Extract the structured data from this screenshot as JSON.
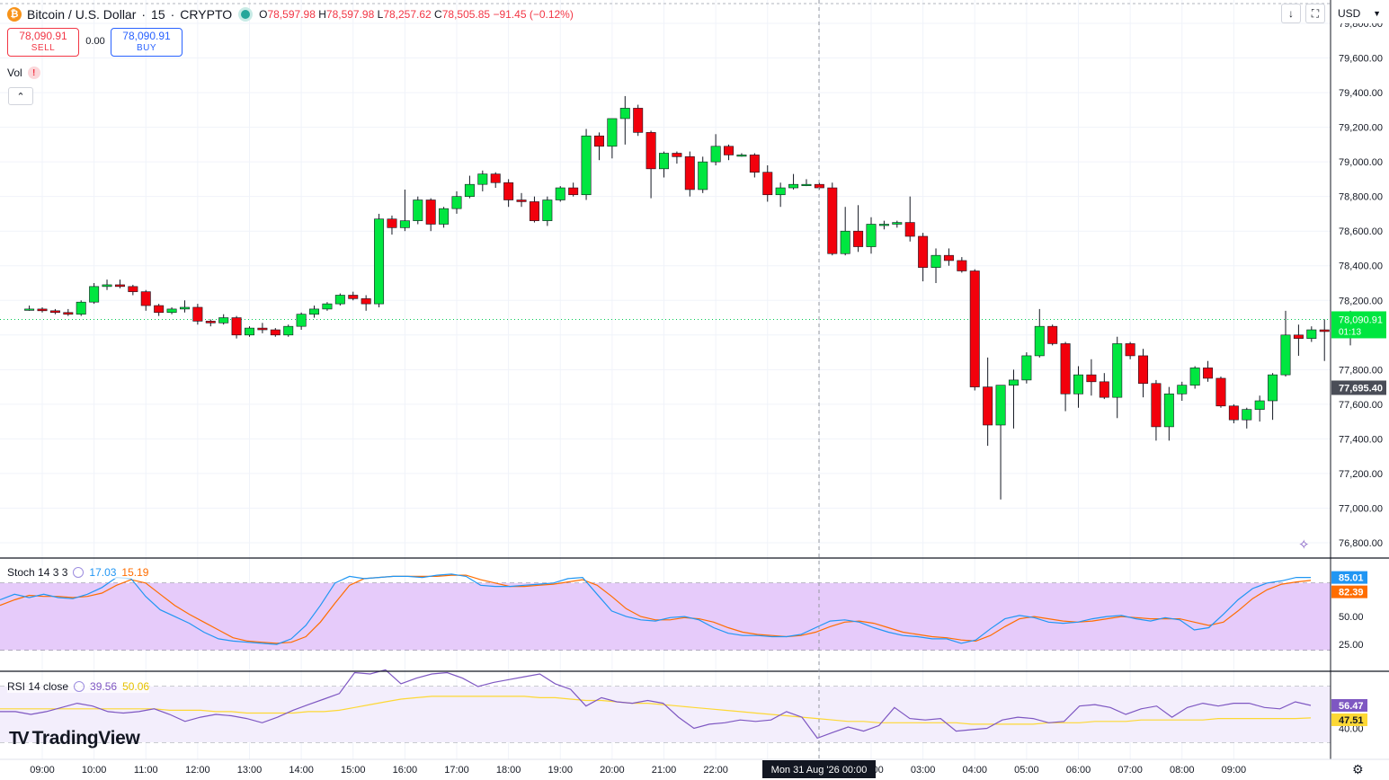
{
  "header": {
    "symbol": "Bitcoin / U.S. Dollar",
    "interval": "15",
    "exchange": "CRYPTO",
    "open_label": "O",
    "open": "78,597.98",
    "high_label": "H",
    "high": "78,597.98",
    "low_label": "L",
    "low": "78,257.62",
    "close_label": "C",
    "close": "78,505.85",
    "change": "−91.45 (−0.12%)"
  },
  "trade": {
    "sell_price": "78,090.91",
    "sell_label": "SELL",
    "spread": "0.00",
    "buy_price": "78,090.91",
    "buy_label": "BUY"
  },
  "volume_label": "Vol",
  "currency": "USD",
  "price_axis": {
    "ticks": [
      "79,800.00",
      "79,600.00",
      "79,400.00",
      "79,200.00",
      "79,000.00",
      "78,800.00",
      "78,600.00",
      "78,400.00",
      "78,200.00",
      "77,800.00",
      "77,600.00",
      "77,400.00",
      "77,200.00",
      "77,000.00",
      "76,800.00"
    ],
    "last_price": "78,090.91",
    "countdown": "01:13",
    "crosshair_price": "77,695.40"
  },
  "time_axis": {
    "ticks": [
      "09:00",
      "10:00",
      "11:00",
      "12:00",
      "13:00",
      "14:00",
      "15:00",
      "16:00",
      "17:00",
      "18:00",
      "19:00",
      "20:00",
      "21:00",
      "22:00",
      "23",
      "00",
      "02:00",
      "03:00",
      "04:00",
      "05:00",
      "06:00",
      "07:00",
      "08:00",
      "09:00"
    ],
    "crosshair_label": "Mon 31 Aug '26   00:00"
  },
  "stoch": {
    "label": "Stoch 14 3 3",
    "k": "17.03",
    "d": "15.19",
    "axis_k": "85.01",
    "axis_d": "82.39",
    "ticks": [
      "50.00",
      "25.00"
    ],
    "colors": {
      "k": "#2196f3",
      "d": "#ff6d00",
      "band": "#e6cbfa"
    },
    "k_values": [
      65,
      70,
      67,
      70,
      67,
      66,
      70,
      76,
      85,
      84,
      68,
      56,
      50,
      44,
      36,
      30,
      28,
      27,
      26,
      25,
      30,
      42,
      60,
      80,
      86,
      84,
      85,
      86,
      86,
      85,
      87,
      88,
      86,
      78,
      77,
      77,
      78,
      79,
      80,
      84,
      85,
      70,
      55,
      50,
      47,
      46,
      49,
      50,
      47,
      40,
      35,
      33,
      33,
      32,
      32,
      34,
      40,
      46,
      47,
      45,
      40,
      36,
      33,
      32,
      30,
      30,
      26,
      29,
      39,
      48,
      51,
      49,
      45,
      44,
      45,
      48,
      50,
      51,
      48,
      46,
      49,
      47,
      38,
      40,
      52,
      65,
      75,
      80,
      82,
      85,
      85.01
    ],
    "d_values": [
      60,
      65,
      69,
      68,
      68,
      67,
      68,
      71,
      78,
      83,
      80,
      70,
      60,
      52,
      45,
      38,
      31,
      28,
      27,
      26,
      27,
      32,
      45,
      62,
      78,
      84,
      85,
      86,
      86,
      86,
      86,
      87,
      87,
      83,
      80,
      77,
      77,
      78,
      79,
      81,
      83,
      78,
      68,
      57,
      50,
      47,
      47,
      49,
      48,
      45,
      40,
      36,
      34,
      33,
      32,
      33,
      36,
      41,
      45,
      46,
      44,
      40,
      36,
      34,
      32,
      31,
      29,
      28,
      33,
      41,
      48,
      50,
      48,
      46,
      45,
      46,
      48,
      50,
      49,
      48,
      48,
      48,
      45,
      42,
      45,
      55,
      66,
      74,
      79,
      81,
      82.39
    ]
  },
  "rsi": {
    "label": "RSI 14 close",
    "value": "39.56",
    "ma": "50.06",
    "axis_value": "56.47",
    "axis_ma": "47.51",
    "ticks": [
      "40.00"
    ],
    "colors": {
      "rsi": "#7e57c2",
      "ma": "#fdd835",
      "band": "#f3eefc"
    },
    "rsi_values": [
      52,
      52,
      50,
      52,
      55,
      58,
      56,
      52,
      51,
      52,
      54,
      50,
      45,
      48,
      50,
      49,
      47,
      44,
      48,
      53,
      57,
      61,
      65,
      80,
      79,
      82,
      72,
      76,
      79,
      80,
      76,
      70,
      73,
      75,
      77,
      79,
      72,
      68,
      56,
      62,
      59,
      58,
      60,
      58,
      48,
      40,
      43,
      44,
      46,
      45,
      46,
      52,
      48,
      33,
      37,
      41,
      38,
      42,
      55,
      47,
      46,
      47,
      38,
      39,
      40,
      46,
      48,
      47,
      44,
      45,
      56,
      57,
      55,
      50,
      54,
      56,
      48,
      55,
      58,
      56,
      58,
      58,
      55,
      54,
      59,
      56.47
    ],
    "ma_values": [
      54,
      54,
      54,
      54,
      54,
      54,
      54,
      54,
      54,
      54,
      54,
      53,
      53,
      53,
      52,
      52,
      51,
      51,
      51,
      51,
      52,
      52,
      53,
      55,
      57,
      59,
      61,
      62,
      63,
      63,
      63,
      63,
      63,
      63,
      63,
      62,
      62,
      61,
      60,
      60,
      59,
      58,
      58,
      57,
      56,
      55,
      54,
      53,
      52,
      51,
      50,
      49,
      48,
      47,
      46,
      45,
      45,
      44,
      44,
      44,
      44,
      44,
      44,
      43,
      43,
      43,
      43,
      43,
      44,
      44,
      44,
      45,
      45,
      45,
      46,
      46,
      46,
      46,
      46,
      47,
      47,
      47,
      47,
      47,
      47,
      47.51
    ]
  },
  "chart_data": {
    "type": "candlestick",
    "title": "Bitcoin / U.S. Dollar · 15 · CRYPTO",
    "interval_minutes": 15,
    "x_start": "08:45",
    "ylim": [
      76700,
      79900
    ],
    "colors": {
      "up": "#00e640",
      "down": "#f2000c",
      "wick": "#131722"
    },
    "ohlc": [
      [
        78150,
        78170,
        78140,
        78150
      ],
      [
        78150,
        78160,
        78130,
        78140
      ],
      [
        78140,
        78150,
        78120,
        78130
      ],
      [
        78130,
        78150,
        78110,
        78120
      ],
      [
        78120,
        78200,
        78110,
        78190
      ],
      [
        78190,
        78300,
        78180,
        78280
      ],
      [
        78280,
        78320,
        78260,
        78290
      ],
      [
        78290,
        78320,
        78270,
        78280
      ],
      [
        78280,
        78290,
        78230,
        78250
      ],
      [
        78250,
        78260,
        78140,
        78170
      ],
      [
        78170,
        78180,
        78110,
        78130
      ],
      [
        78130,
        78160,
        78120,
        78150
      ],
      [
        78150,
        78200,
        78130,
        78160
      ],
      [
        78160,
        78180,
        78060,
        78080
      ],
      [
        78080,
        78090,
        78050,
        78070
      ],
      [
        78070,
        78120,
        78060,
        78100
      ],
      [
        78100,
        78110,
        77980,
        78000
      ],
      [
        78000,
        78050,
        77990,
        78040
      ],
      [
        78040,
        78070,
        78010,
        78030
      ],
      [
        78030,
        78040,
        77990,
        78000
      ],
      [
        78000,
        78060,
        77990,
        78050
      ],
      [
        78050,
        78130,
        78030,
        78120
      ],
      [
        78120,
        78170,
        78100,
        78150
      ],
      [
        78150,
        78190,
        78140,
        78180
      ],
      [
        78180,
        78240,
        78170,
        78230
      ],
      [
        78230,
        78250,
        78200,
        78210
      ],
      [
        78210,
        78230,
        78140,
        78180
      ],
      [
        78180,
        78700,
        78160,
        78670
      ],
      [
        78670,
        78690,
        78580,
        78620
      ],
      [
        78620,
        78840,
        78600,
        78660
      ],
      [
        78660,
        78800,
        78640,
        78780
      ],
      [
        78780,
        78790,
        78600,
        78640
      ],
      [
        78640,
        78740,
        78620,
        78730
      ],
      [
        78730,
        78830,
        78700,
        78800
      ],
      [
        78800,
        78920,
        78790,
        78870
      ],
      [
        78870,
        78950,
        78830,
        78930
      ],
      [
        78930,
        78940,
        78850,
        78880
      ],
      [
        78880,
        78900,
        78740,
        78780
      ],
      [
        78780,
        78820,
        78740,
        78770
      ],
      [
        78770,
        78800,
        78650,
        78660
      ],
      [
        78660,
        78800,
        78630,
        78780
      ],
      [
        78780,
        78860,
        78770,
        78850
      ],
      [
        78850,
        78880,
        78800,
        78810
      ],
      [
        78810,
        79190,
        78780,
        79150
      ],
      [
        79150,
        79170,
        79010,
        79090
      ],
      [
        79090,
        79250,
        79020,
        79250
      ],
      [
        79250,
        79380,
        79100,
        79310
      ],
      [
        79310,
        79330,
        79150,
        79170
      ],
      [
        79170,
        79180,
        78790,
        78960
      ],
      [
        78960,
        79060,
        78910,
        79050
      ],
      [
        79050,
        79060,
        78990,
        79030
      ],
      [
        79030,
        79060,
        78800,
        78840
      ],
      [
        78840,
        79030,
        78820,
        79000
      ],
      [
        79000,
        79160,
        78980,
        79090
      ],
      [
        79090,
        79100,
        79010,
        79040
      ],
      [
        79040,
        79050,
        79030,
        79040
      ],
      [
        79040,
        79050,
        78910,
        78940
      ],
      [
        78940,
        78980,
        78770,
        78810
      ],
      [
        78810,
        78880,
        78740,
        78850
      ],
      [
        78850,
        78930,
        78840,
        78870
      ],
      [
        78870,
        78900,
        78860,
        78870
      ],
      [
        78870,
        78880,
        78840,
        78850
      ],
      [
        78850,
        78880,
        78460,
        78470
      ],
      [
        78470,
        78740,
        78460,
        78600
      ],
      [
        78600,
        78750,
        78480,
        78510
      ],
      [
        78510,
        78680,
        78470,
        78640
      ],
      [
        78640,
        78660,
        78610,
        78640
      ],
      [
        78640,
        78660,
        78620,
        78650
      ],
      [
        78650,
        78800,
        78540,
        78570
      ],
      [
        78570,
        78590,
        78310,
        78390
      ],
      [
        78390,
        78500,
        78300,
        78460
      ],
      [
        78460,
        78500,
        78400,
        78430
      ],
      [
        78430,
        78450,
        78360,
        78370
      ],
      [
        78370,
        78380,
        77680,
        77700
      ],
      [
        77700,
        77870,
        77360,
        77480
      ],
      [
        77480,
        77700,
        77050,
        77710
      ],
      [
        77710,
        77800,
        77460,
        77740
      ],
      [
        77740,
        77900,
        77720,
        77880
      ],
      [
        77880,
        78150,
        77870,
        78050
      ],
      [
        78050,
        78060,
        77940,
        77950
      ],
      [
        77950,
        77960,
        77560,
        77660
      ],
      [
        77660,
        77820,
        77580,
        77770
      ],
      [
        77770,
        77860,
        77650,
        77730
      ],
      [
        77730,
        77780,
        77630,
        77640
      ],
      [
        77640,
        77990,
        77520,
        77950
      ],
      [
        77950,
        77960,
        77860,
        77880
      ],
      [
        77880,
        77920,
        77640,
        77720
      ],
      [
        77720,
        77740,
        77390,
        77470
      ],
      [
        77470,
        77700,
        77390,
        77660
      ],
      [
        77660,
        77730,
        77620,
        77710
      ],
      [
        77710,
        77820,
        77690,
        77810
      ],
      [
        77810,
        77850,
        77730,
        77750
      ],
      [
        77750,
        77760,
        77580,
        77590
      ],
      [
        77590,
        77600,
        77490,
        77510
      ],
      [
        77510,
        77580,
        77460,
        77570
      ],
      [
        77570,
        77650,
        77500,
        77620
      ],
      [
        77620,
        77780,
        77510,
        77770
      ],
      [
        77770,
        78140,
        77760,
        78000
      ],
      [
        78000,
        78060,
        77880,
        77980
      ],
      [
        77980,
        78050,
        77960,
        78030
      ],
      [
        78030,
        78090,
        77850,
        78020
      ],
      [
        78020,
        78070,
        77990,
        78010
      ],
      [
        78010,
        78140,
        77940,
        78090
      ]
    ]
  }
}
